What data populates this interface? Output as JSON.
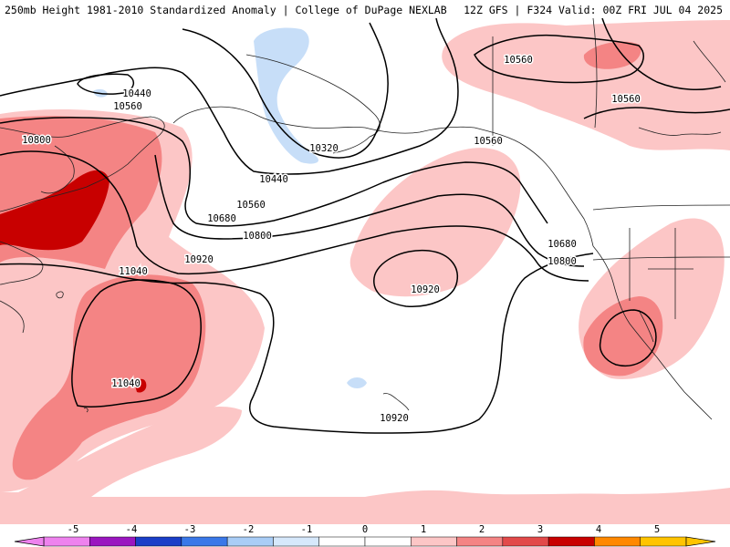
{
  "header": {
    "left": "250mb Height 1981-2010 Standardized Anomaly | College of DuPage NEXLAB",
    "right": "12Z GFS | F324 Valid: 00Z FRI JUL 04 2025"
  },
  "colorbar": {
    "labels": [
      "-5",
      "-4",
      "-3",
      "-2",
      "-1",
      "0",
      "1",
      "2",
      "3",
      "4",
      "5"
    ],
    "colors": [
      "#ee82ee",
      "#9a16c0",
      "#1a3ec8",
      "#3a78e8",
      "#a9cdf6",
      "#d6e8fb",
      "#ffffff",
      "#ffffff",
      "#fcc6c6",
      "#f48484",
      "#e24a4a",
      "#c80000",
      "#ff8800",
      "#ffc400"
    ]
  },
  "contour_labels": [
    {
      "text": "10440",
      "id": "c10440-nw"
    },
    {
      "text": "10560",
      "id": "c10560-nw"
    },
    {
      "text": "10800",
      "id": "c10800-asia"
    },
    {
      "text": "10320",
      "id": "c10320"
    },
    {
      "text": "10440",
      "id": "c10440-s"
    },
    {
      "text": "10560",
      "id": "c10560-s"
    },
    {
      "text": "10680",
      "id": "c10680-s"
    },
    {
      "text": "10800",
      "id": "c10800-s"
    },
    {
      "text": "10920",
      "id": "c10920-w"
    },
    {
      "text": "11040",
      "id": "c11040-n"
    },
    {
      "text": "11040",
      "id": "c11040-s"
    },
    {
      "text": "10920",
      "id": "c10920-hi"
    },
    {
      "text": "10920",
      "id": "c10920-low"
    },
    {
      "text": "10560",
      "id": "c10560-ak"
    },
    {
      "text": "10560",
      "id": "c10560-ne"
    },
    {
      "text": "10560",
      "id": "c10560-e"
    },
    {
      "text": "10680",
      "id": "c10680-e"
    },
    {
      "text": "10800",
      "id": "c10800-e"
    }
  ]
}
